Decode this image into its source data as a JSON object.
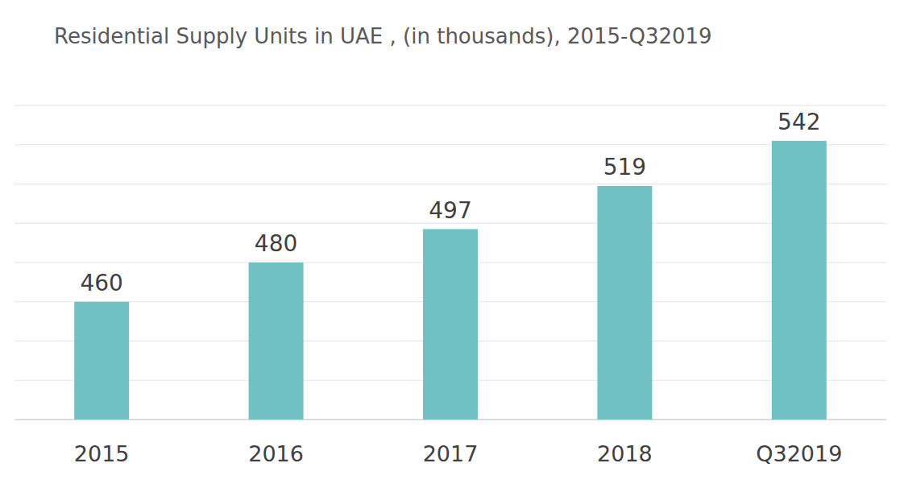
{
  "chart_data": {
    "type": "bar",
    "title": "Residential Supply Units in UAE , (in thousands), 2015-Q32019",
    "categories": [
      "2015",
      "2016",
      "2017",
      "2018",
      "Q32019"
    ],
    "values": [
      460,
      480,
      497,
      519,
      542
    ],
    "color": "#70c0c4",
    "ylim": [
      400,
      560
    ],
    "yticks": [
      400,
      420,
      440,
      460,
      480,
      500,
      520,
      540,
      560
    ],
    "grid": true,
    "data_labels": true,
    "tick_labels": "x"
  }
}
